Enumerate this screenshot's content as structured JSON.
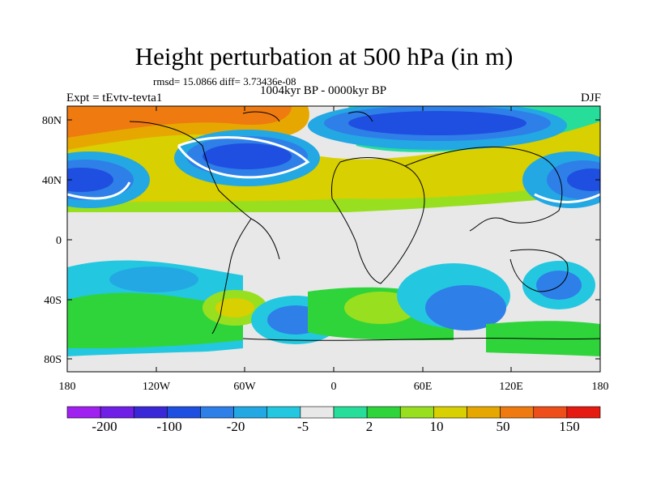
{
  "title": "Height perturbation at 500 hPa (in m)",
  "stats": "rmsd= 15.0866 diff= 3.73436e-08",
  "period": "1004kyr BP - 0000kyr BP",
  "experiment": "Expt = tEvtv-tevta1",
  "season": "DJF",
  "lat_labels": [
    "80N",
    "40N",
    "0",
    "40S",
    "80S"
  ],
  "lon_labels": [
    "180",
    "120W",
    "60W",
    "0",
    "60E",
    "120E",
    "180"
  ],
  "colorbar": {
    "colors": [
      "#a020f0",
      "#7020e6",
      "#3a28d8",
      "#1f4fe0",
      "#2e7fe8",
      "#23a8e3",
      "#23c8e0",
      "#e8e8e8",
      "#27dd9a",
      "#2fd43a",
      "#98df20",
      "#d8d000",
      "#e6a800",
      "#ee7a10",
      "#ee4e1a",
      "#e51a10"
    ],
    "labels": [
      "-200",
      "-100",
      "-20",
      "-5",
      "2",
      "10",
      "50",
      "150"
    ]
  }
}
